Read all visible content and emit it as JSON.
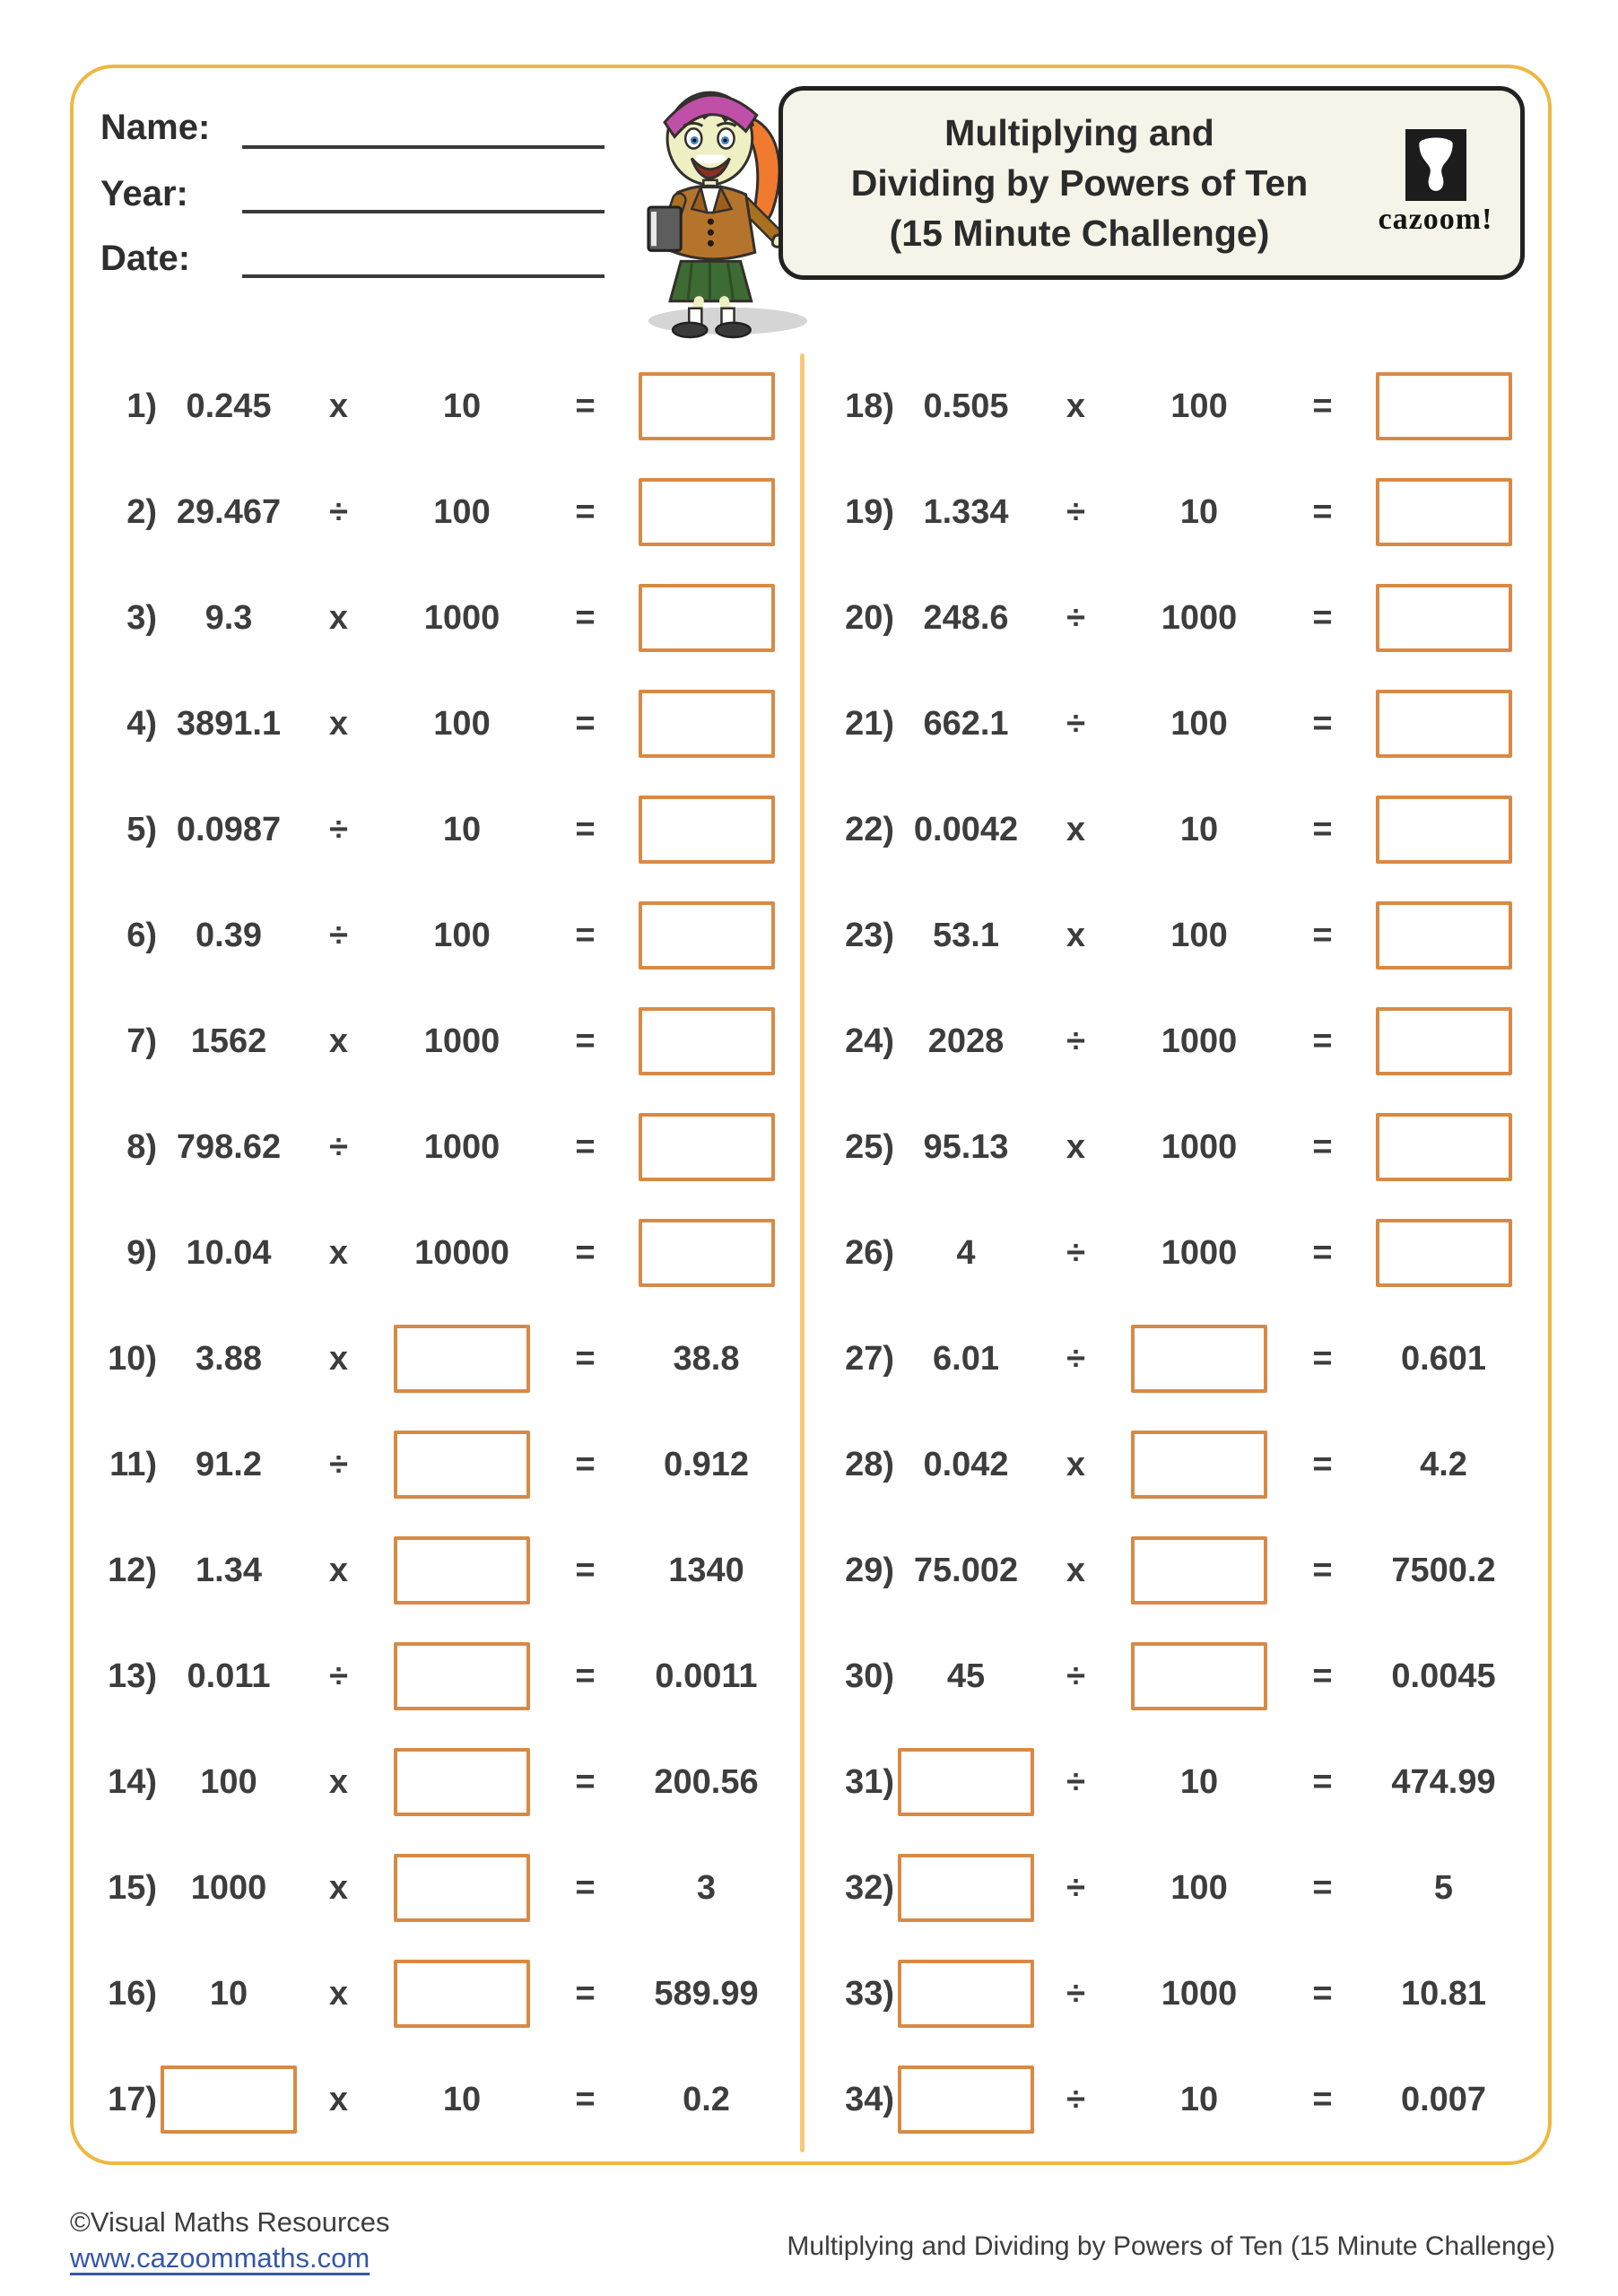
{
  "worksheet": {
    "header": {
      "name_label": "Name:",
      "year_label": "Year:",
      "date_label": "Date:",
      "title_lines": [
        "Multiplying and",
        "Dividing by Powers of Ten",
        "(15 Minute Challenge)"
      ],
      "logo_text": "cazoom!"
    },
    "problems_left": [
      {
        "n": "1)",
        "a": "0.245",
        "op": "x",
        "b": "10",
        "eq": "=",
        "ans": "",
        "box": "ans"
      },
      {
        "n": "2)",
        "a": "29.467",
        "op": "÷",
        "b": "100",
        "eq": "=",
        "ans": "",
        "box": "ans"
      },
      {
        "n": "3)",
        "a": "9.3",
        "op": "x",
        "b": "1000",
        "eq": "=",
        "ans": "",
        "box": "ans"
      },
      {
        "n": "4)",
        "a": "3891.1",
        "op": "x",
        "b": "100",
        "eq": "=",
        "ans": "",
        "box": "ans"
      },
      {
        "n": "5)",
        "a": "0.0987",
        "op": "÷",
        "b": "10",
        "eq": "=",
        "ans": "",
        "box": "ans"
      },
      {
        "n": "6)",
        "a": "0.39",
        "op": "÷",
        "b": "100",
        "eq": "=",
        "ans": "",
        "box": "ans"
      },
      {
        "n": "7)",
        "a": "1562",
        "op": "x",
        "b": "1000",
        "eq": "=",
        "ans": "",
        "box": "ans"
      },
      {
        "n": "8)",
        "a": "798.62",
        "op": "÷",
        "b": "1000",
        "eq": "=",
        "ans": "",
        "box": "ans"
      },
      {
        "n": "9)",
        "a": "10.04",
        "op": "x",
        "b": "10000",
        "eq": "=",
        "ans": "",
        "box": "ans"
      },
      {
        "n": "10)",
        "a": "3.88",
        "op": "x",
        "b": "",
        "eq": "=",
        "ans": "38.8",
        "box": "b"
      },
      {
        "n": "11)",
        "a": "91.2",
        "op": "÷",
        "b": "",
        "eq": "=",
        "ans": "0.912",
        "box": "b"
      },
      {
        "n": "12)",
        "a": "1.34",
        "op": "x",
        "b": "",
        "eq": "=",
        "ans": "1340",
        "box": "b"
      },
      {
        "n": "13)",
        "a": "0.011",
        "op": "÷",
        "b": "",
        "eq": "=",
        "ans": "0.0011",
        "box": "b"
      },
      {
        "n": "14)",
        "a": "100",
        "op": "x",
        "b": "",
        "eq": "=",
        "ans": "200.56",
        "box": "b"
      },
      {
        "n": "15)",
        "a": "1000",
        "op": "x",
        "b": "",
        "eq": "=",
        "ans": "3",
        "box": "b"
      },
      {
        "n": "16)",
        "a": "10",
        "op": "x",
        "b": "",
        "eq": "=",
        "ans": "589.99",
        "box": "b"
      },
      {
        "n": "17)",
        "a": "",
        "op": "x",
        "b": "10",
        "eq": "=",
        "ans": "0.2",
        "box": "a"
      }
    ],
    "problems_right": [
      {
        "n": "18)",
        "a": "0.505",
        "op": "x",
        "b": "100",
        "eq": "=",
        "ans": "",
        "box": "ans"
      },
      {
        "n": "19)",
        "a": "1.334",
        "op": "÷",
        "b": "10",
        "eq": "=",
        "ans": "",
        "box": "ans"
      },
      {
        "n": "20)",
        "a": "248.6",
        "op": "÷",
        "b": "1000",
        "eq": "=",
        "ans": "",
        "box": "ans"
      },
      {
        "n": "21)",
        "a": "662.1",
        "op": "÷",
        "b": "100",
        "eq": "=",
        "ans": "",
        "box": "ans"
      },
      {
        "n": "22)",
        "a": "0.0042",
        "op": "x",
        "b": "10",
        "eq": "=",
        "ans": "",
        "box": "ans"
      },
      {
        "n": "23)",
        "a": "53.1",
        "op": "x",
        "b": "100",
        "eq": "=",
        "ans": "",
        "box": "ans"
      },
      {
        "n": "24)",
        "a": "2028",
        "op": "÷",
        "b": "1000",
        "eq": "=",
        "ans": "",
        "box": "ans"
      },
      {
        "n": "25)",
        "a": "95.13",
        "op": "x",
        "b": "1000",
        "eq": "=",
        "ans": "",
        "box": "ans"
      },
      {
        "n": "26)",
        "a": "4",
        "op": "÷",
        "b": "1000",
        "eq": "=",
        "ans": "",
        "box": "ans"
      },
      {
        "n": "27)",
        "a": "6.01",
        "op": "÷",
        "b": "",
        "eq": "=",
        "ans": "0.601",
        "box": "b"
      },
      {
        "n": "28)",
        "a": "0.042",
        "op": "x",
        "b": "",
        "eq": "=",
        "ans": "4.2",
        "box": "b"
      },
      {
        "n": "29)",
        "a": "75.002",
        "op": "x",
        "b": "",
        "eq": "=",
        "ans": "7500.2",
        "box": "b"
      },
      {
        "n": "30)",
        "a": "45",
        "op": "÷",
        "b": "",
        "eq": "=",
        "ans": "0.0045",
        "box": "b"
      },
      {
        "n": "31)",
        "a": "",
        "op": "÷",
        "b": "10",
        "eq": "=",
        "ans": "474.99",
        "box": "a"
      },
      {
        "n": "32)",
        "a": "",
        "op": "÷",
        "b": "100",
        "eq": "=",
        "ans": "5",
        "box": "a"
      },
      {
        "n": "33)",
        "a": "",
        "op": "÷",
        "b": "1000",
        "eq": "=",
        "ans": "10.81",
        "box": "a"
      },
      {
        "n": "34)",
        "a": "",
        "op": "÷",
        "b": "10",
        "eq": "=",
        "ans": "0.007",
        "box": "a"
      }
    ],
    "footer": {
      "copyright": "©Visual Maths Resources",
      "website": "www.cazoommaths.com",
      "doc_title": "Multiplying and Dividing by Powers of Ten (15 Minute Challenge)"
    }
  },
  "icons": {
    "logo_icon": "djembe-drum-icon",
    "mascot_icon": "girl-student-illustration"
  },
  "colors": {
    "frame_border": "#edb843",
    "column_divider": "#f7c877",
    "answer_box_border": "#d88a45",
    "problem_text": "#3d3d3d",
    "title_box_bg": "#f6f3e8",
    "title_box_border": "#222222",
    "link_blue": "#3557a7",
    "logo_bg": "#1c1c1c"
  }
}
